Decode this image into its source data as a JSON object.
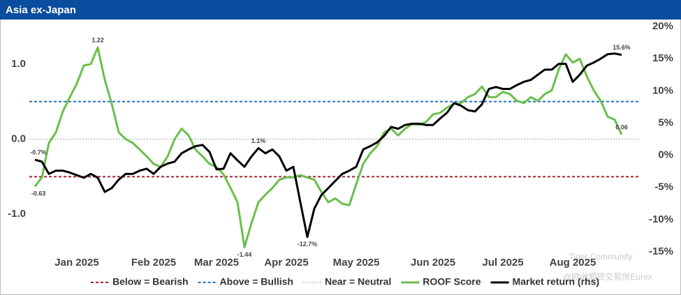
{
  "chart_data": {
    "type": "line",
    "title": "Asia ex-Japan",
    "categories": [
      null,
      null,
      null,
      null,
      null,
      null,
      "Jan 2025",
      null,
      null,
      null,
      null,
      null,
      null,
      null,
      null,
      null,
      null,
      "Feb 2025",
      null,
      null,
      null,
      null,
      null,
      null,
      null,
      null,
      "Mar 2025",
      null,
      null,
      null,
      null,
      null,
      null,
      null,
      null,
      null,
      "Apr 2025",
      null,
      null,
      null,
      null,
      null,
      null,
      null,
      null,
      null,
      "May 2025",
      null,
      null,
      null,
      null,
      null,
      null,
      null,
      null,
      null,
      null,
      "Jun 2025",
      null,
      null,
      null,
      null,
      null,
      null,
      null,
      null,
      null,
      "Jul 2025",
      null,
      null,
      null,
      null,
      null,
      null,
      null,
      null,
      null,
      "Aug 2025",
      null,
      null,
      null,
      null,
      null,
      null,
      null
    ],
    "series": [
      {
        "name": "ROOF Score",
        "color": "#6abf4b",
        "values": [
          -0.63,
          -0.51,
          -0.05,
          0.09,
          0.37,
          0.56,
          0.74,
          0.98,
          1.0,
          1.22,
          0.79,
          0.47,
          0.09,
          0,
          -0.05,
          -0.14,
          -0.23,
          -0.33,
          -0.37,
          -0.23,
          0,
          0.14,
          0.05,
          -0.14,
          -0.23,
          -0.33,
          -0.37,
          -0.47,
          -0.65,
          -0.84,
          -1.44,
          -1.12,
          -0.84,
          -0.74,
          -0.65,
          -0.54,
          -0.51,
          -0.51,
          -0.48,
          -0.51,
          -0.54,
          -0.7,
          -0.84,
          -0.79,
          -0.86,
          -0.88,
          -0.6,
          -0.33,
          -0.19,
          -0.09,
          0.09,
          0.14,
          0.05,
          0.14,
          0.2,
          0.19,
          0.23,
          0.33,
          0.35,
          0.42,
          0.47,
          0.48,
          0.56,
          0.6,
          0.7,
          0.56,
          0.56,
          0.63,
          0.6,
          0.51,
          0.48,
          0.56,
          0.51,
          0.6,
          0.65,
          0.93,
          1.13,
          1.02,
          1.07,
          0.84,
          0.65,
          0.51,
          0.3,
          0.26,
          0.06
        ],
        "value_labels": [
          "-0.63",
          null,
          null,
          null,
          null,
          null,
          null,
          null,
          null,
          "1.22",
          null,
          null,
          null,
          null,
          null,
          null,
          null,
          null,
          null,
          null,
          null,
          null,
          null,
          null,
          null,
          null,
          null,
          null,
          null,
          null,
          "-1.44",
          null,
          null,
          null,
          null,
          null,
          null,
          null,
          null,
          null,
          null,
          null,
          null,
          null,
          null,
          null,
          null,
          null,
          null,
          null,
          null,
          null,
          null,
          null,
          null,
          null,
          null,
          null,
          null,
          null,
          null,
          null,
          null,
          null,
          null,
          null,
          null,
          null,
          null,
          null,
          null,
          null,
          null,
          null,
          null,
          null,
          null,
          null,
          null,
          null,
          null,
          null,
          null,
          null,
          "0.06"
        ]
      },
      {
        "name": "Market return (rhs)",
        "color": "#000000",
        "axis": "y2",
        "values": [
          -0.7,
          -1.0,
          -2.9,
          -2.4,
          -2.4,
          -2.7,
          -3.1,
          -3.5,
          -2.9,
          -3.5,
          -5.7,
          -5.1,
          -3.8,
          -2.9,
          -2.9,
          -2.4,
          -2.1,
          -2.9,
          -1.8,
          -1.3,
          -1.0,
          0.3,
          0.9,
          1.4,
          1.6,
          0.5,
          -2.2,
          -2.1,
          0.3,
          -0.8,
          -1.8,
          -0.2,
          1.1,
          0.3,
          0.9,
          -0.2,
          -2.4,
          -1.8,
          -7.3,
          -12.7,
          -8.3,
          -6.2,
          -5.1,
          -4.0,
          -2.9,
          -2.4,
          -1.8,
          0.9,
          1.4,
          2.0,
          3.0,
          4.4,
          4.1,
          4.7,
          4.9,
          4.9,
          4.7,
          4.7,
          5.7,
          6.6,
          8.1,
          7.7,
          7.0,
          6.8,
          7.9,
          10.3,
          10.6,
          10.3,
          10.3,
          10.9,
          11.4,
          11.7,
          12.5,
          13.3,
          13.3,
          14.2,
          14.2,
          11.4,
          12.5,
          13.9,
          14.4,
          15.0,
          15.7,
          15.8,
          15.6
        ],
        "value_labels": [
          "-0.7%",
          null,
          null,
          null,
          null,
          null,
          null,
          null,
          null,
          null,
          null,
          null,
          null,
          null,
          null,
          null,
          null,
          null,
          null,
          null,
          null,
          null,
          null,
          null,
          null,
          null,
          null,
          null,
          null,
          null,
          null,
          null,
          "1.1%",
          null,
          null,
          null,
          null,
          null,
          null,
          "-12.7%",
          null,
          null,
          null,
          null,
          null,
          null,
          null,
          null,
          null,
          null,
          null,
          null,
          null,
          null,
          null,
          null,
          null,
          null,
          null,
          null,
          null,
          null,
          null,
          null,
          null,
          null,
          null,
          null,
          null,
          null,
          null,
          null,
          null,
          null,
          null,
          null,
          null,
          null,
          null,
          null,
          null,
          null,
          null,
          null,
          "15.6%"
        ]
      }
    ],
    "reference_lines": [
      {
        "name": "Below = Bearish",
        "value": -0.5,
        "color": "#a3212c"
      },
      {
        "name": "Above = Bullish",
        "value": 0.5,
        "color": "#2470c0"
      },
      {
        "name": "Near = Neutral",
        "value": 0,
        "color": "#b8b8b8"
      }
    ],
    "ylim": [
      -1.5,
      1.5
    ],
    "yticks": [
      {
        "value": 1,
        "label": "1.0"
      },
      {
        "value": 0,
        "label": "0.0"
      },
      {
        "value": -1,
        "label": "-1.0"
      }
    ],
    "y2lim": [
      -15,
      20
    ],
    "y2ticks": [
      {
        "value": 20,
        "label": "20%"
      },
      {
        "value": 15,
        "label": "15%"
      },
      {
        "value": 10,
        "label": "10%"
      },
      {
        "value": 5,
        "label": "5%"
      },
      {
        "value": 0,
        "label": "0%"
      },
      {
        "value": -5,
        "label": "-5%"
      },
      {
        "value": -10,
        "label": "-10%"
      },
      {
        "value": -15,
        "label": "-15%"
      }
    ],
    "grid": false,
    "legend": "bottom",
    "watermarks": [
      "Tiger Community",
      "@欧洲期货交易所Eurex"
    ]
  }
}
